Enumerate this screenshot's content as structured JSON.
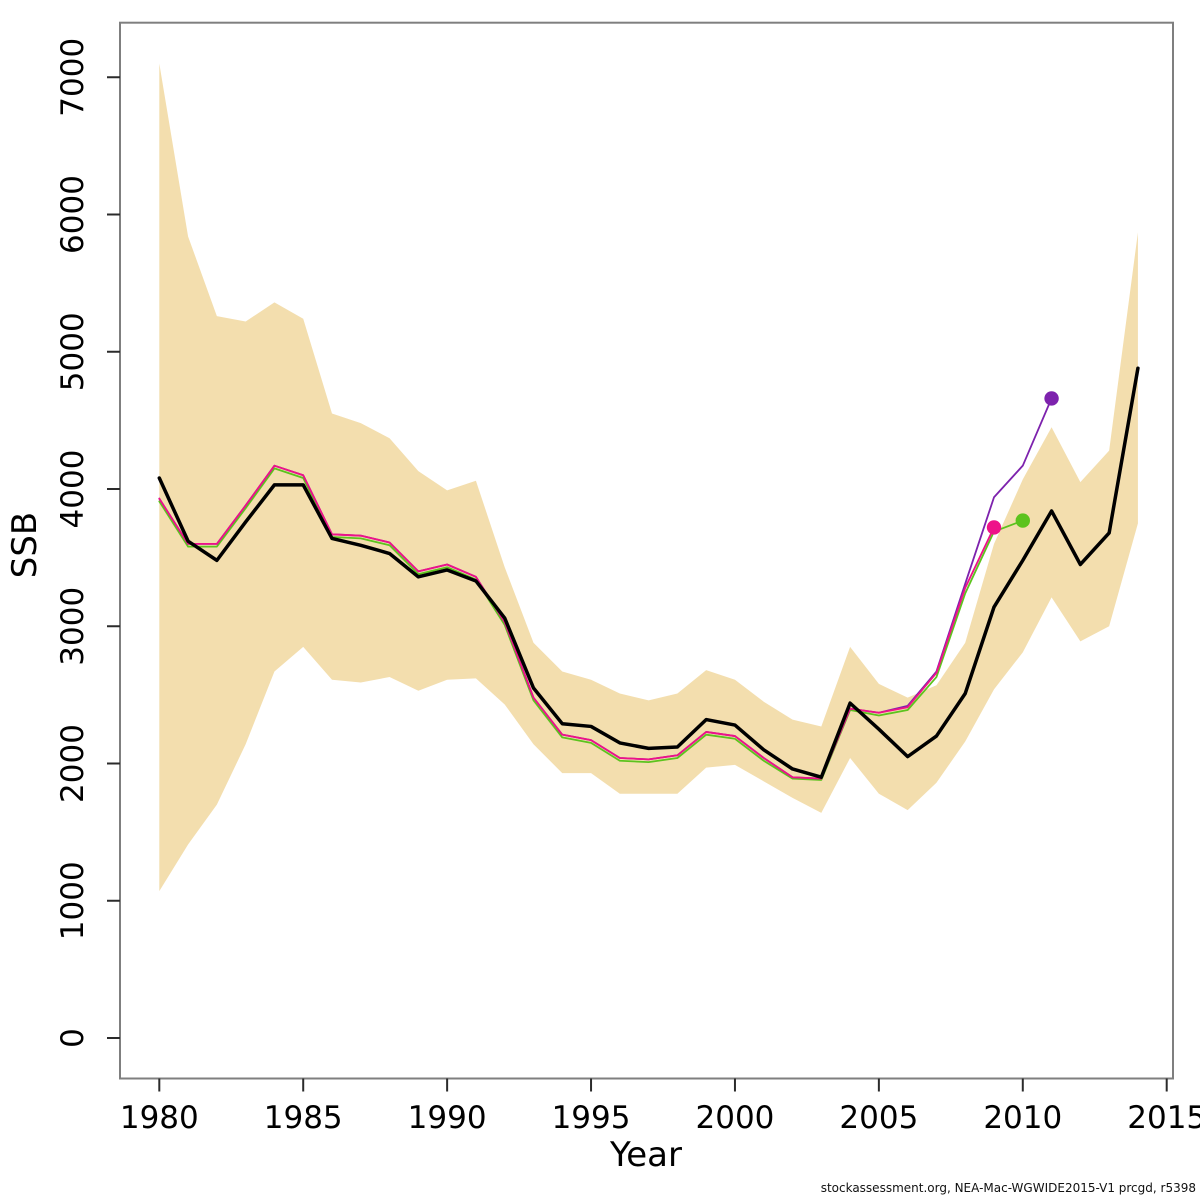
{
  "figure": {
    "footer": "stockassessment.org, NEA-Mac-WGWIDE2015-V1  prcgd, r5398"
  },
  "chart_data": {
    "type": "line",
    "title": "",
    "xlabel": "Year",
    "ylabel": "SSB",
    "xlim": [
      1978.6,
      2015.2
    ],
    "ylim": [
      -300,
      7400
    ],
    "grid": false,
    "legend": "none",
    "x_ticks": [
      1980,
      1985,
      1990,
      1995,
      2000,
      2005,
      2010,
      2015
    ],
    "y_ticks": [
      0,
      1000,
      2000,
      3000,
      4000,
      5000,
      6000,
      7000
    ],
    "years": [
      1980,
      1981,
      1982,
      1983,
      1984,
      1985,
      1986,
      1987,
      1988,
      1989,
      1990,
      1991,
      1992,
      1993,
      1994,
      1995,
      1996,
      1997,
      1998,
      1999,
      2000,
      2001,
      2002,
      2003,
      2004,
      2005,
      2006,
      2007,
      2008,
      2009,
      2010,
      2011,
      2012,
      2013,
      2014
    ],
    "band": {
      "name": "confidence-interval",
      "color": "#f3deae",
      "upper": [
        7100,
        5840,
        5260,
        5220,
        5360,
        5240,
        4550,
        4480,
        4370,
        4130,
        3990,
        4060,
        3430,
        2880,
        2670,
        2610,
        2510,
        2460,
        2510,
        2680,
        2610,
        2450,
        2320,
        2270,
        2850,
        2580,
        2480,
        2570,
        2880,
        3600,
        4070,
        4450,
        4050,
        4280,
        5870
      ],
      "lower": [
        1070,
        1410,
        1700,
        2140,
        2670,
        2850,
        2610,
        2590,
        2630,
        2530,
        2610,
        2620,
        2430,
        2140,
        1930,
        1930,
        1780,
        1780,
        1780,
        1970,
        1990,
        1870,
        1750,
        1640,
        2040,
        1780,
        1660,
        1860,
        2160,
        2540,
        2810,
        3210,
        2890,
        3000,
        3750
      ]
    },
    "series": [
      {
        "name": "retro-run-green",
        "color": "#5cc31e",
        "width": 1.8,
        "end_dot": true,
        "end_year": 2010,
        "values": [
          3910,
          3580,
          3580,
          3860,
          4150,
          4080,
          3650,
          3640,
          3590,
          3380,
          3430,
          3340,
          3010,
          2460,
          2190,
          2150,
          2020,
          2010,
          2040,
          2210,
          2180,
          2020,
          1890,
          1880,
          2390,
          2350,
          2390,
          2630,
          3240,
          3690,
          3770
        ]
      },
      {
        "name": "retro-run-purple",
        "color": "#7d22ad",
        "width": 1.8,
        "end_dot": true,
        "end_year": 2011,
        "values": [
          3930,
          3600,
          3600,
          3880,
          4170,
          4100,
          3670,
          3660,
          3610,
          3400,
          3450,
          3360,
          3030,
          2480,
          2210,
          2170,
          2040,
          2030,
          2060,
          2230,
          2200,
          2040,
          1900,
          1890,
          2400,
          2370,
          2420,
          2670,
          3310,
          3940,
          4170,
          4660
        ]
      },
      {
        "name": "retro-run-magenta",
        "color": "#ee1289",
        "width": 1.8,
        "end_dot": true,
        "end_year": 2009,
        "values": [
          3930,
          3600,
          3600,
          3880,
          4170,
          4100,
          3670,
          3660,
          3610,
          3400,
          3450,
          3360,
          3030,
          2480,
          2210,
          2170,
          2040,
          2030,
          2060,
          2230,
          2200,
          2040,
          1900,
          1890,
          2400,
          2370,
          2410,
          2660,
          3280,
          3720
        ]
      },
      {
        "name": "current-assessment-ssb",
        "color": "#000000",
        "width": 3.5,
        "end_dot": false,
        "end_year": 2014,
        "values": [
          4080,
          3620,
          3480,
          3760,
          4030,
          4030,
          3640,
          3590,
          3530,
          3360,
          3410,
          3330,
          3060,
          2550,
          2290,
          2270,
          2150,
          2110,
          2120,
          2320,
          2280,
          2100,
          1960,
          1900,
          2440,
          2250,
          2050,
          2200,
          2510,
          3140,
          3480,
          3840,
          3450,
          3680,
          4880
        ]
      }
    ]
  }
}
